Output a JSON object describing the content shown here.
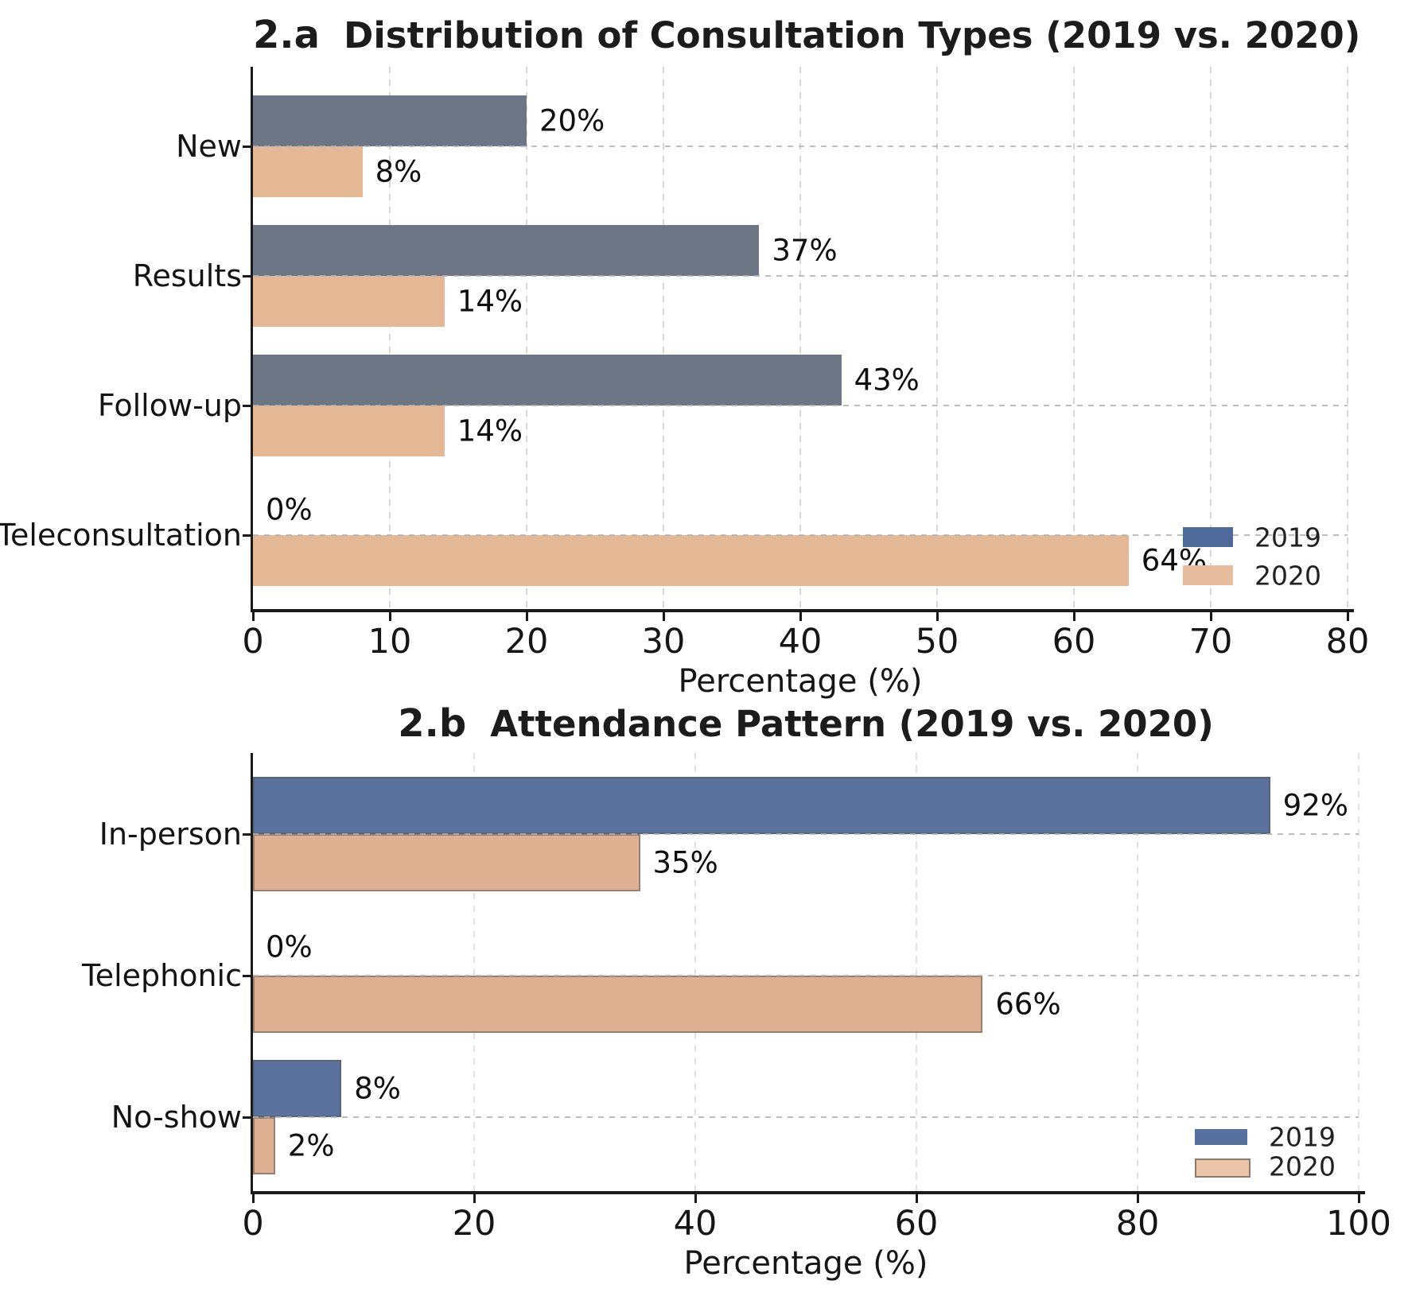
{
  "figure": {
    "background": "#ffffff"
  },
  "chart_data": [
    {
      "id": "2a",
      "type": "bar",
      "orientation": "horizontal",
      "panel_label": "2.a",
      "title": "Distribution of Consultation Types (2019 vs. 2020)",
      "categories": [
        "New",
        "Results",
        "Follow-up",
        "Teleconsultation"
      ],
      "series": [
        {
          "name": "2019",
          "color": "#6d7685",
          "legend_color": "#4e6a9b",
          "values": [
            20,
            37,
            43,
            0
          ],
          "labels": [
            "20%",
            "37%",
            "43%",
            "0%"
          ]
        },
        {
          "name": "2020",
          "color": "#e4b795",
          "legend_color": "#e7bd9e",
          "values": [
            8,
            14,
            14,
            64
          ],
          "labels": [
            "8%",
            "14%",
            "14%",
            "64%"
          ]
        }
      ],
      "xlabel": "Percentage (%)",
      "xlim": [
        0,
        80
      ],
      "xticks": [
        0,
        10,
        20,
        30,
        40,
        50,
        60,
        70,
        80
      ],
      "grid": "dashed-both-axes",
      "legend_position": "center-right",
      "legend_entries": [
        "2019",
        "2020"
      ]
    },
    {
      "id": "2b",
      "type": "bar",
      "orientation": "horizontal",
      "panel_label": "2.b",
      "title": "Attendance Pattern (2019 vs. 2020)",
      "categories": [
        "In-person",
        "Telephonic",
        "No-show"
      ],
      "series": [
        {
          "name": "2019",
          "color": "#5a739e",
          "legend_color": "#56719e",
          "values": [
            92,
            0,
            8
          ],
          "labels": [
            "92%",
            "0%",
            "8%"
          ]
        },
        {
          "name": "2020",
          "color": "#dfb092",
          "legend_color": "#ecc5a8",
          "values": [
            35,
            66,
            2
          ],
          "labels": [
            "35%",
            "66%",
            "2%"
          ]
        }
      ],
      "xlabel": "Percentage (%)",
      "xlim": [
        0,
        100
      ],
      "xticks": [
        0,
        20,
        40,
        60,
        80,
        100
      ],
      "grid": "dashed-both-axes",
      "legend_position": "lower-right",
      "legend_entries": [
        "2019",
        "2020"
      ]
    }
  ]
}
